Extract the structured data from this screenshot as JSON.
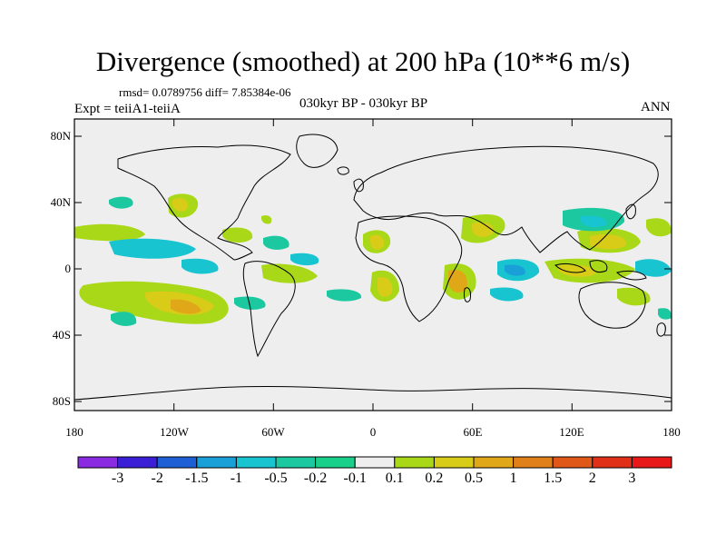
{
  "title": "Divergence (smoothed) at 200 hPa (10**6 m/s)",
  "stats_line": "rmsd= 0.0789756 diff= 7.85384e-06",
  "experiment_label": "Expt = teiiA1-teiiA",
  "period_label": "030kyr BP - 030kyr BP",
  "season_label": "ANN",
  "lat_ticks": [
    "80N",
    "40N",
    "0",
    "40S",
    "80S"
  ],
  "lon_ticks": [
    "180",
    "120W",
    "60W",
    "0",
    "60E",
    "120E",
    "180"
  ],
  "colorbar": {
    "labels": [
      "-3",
      "-2",
      "-1.5",
      "-1",
      "-0.5",
      "-0.2",
      "-0.1",
      "0.1",
      "0.2",
      "0.5",
      "1",
      "1.5",
      "2",
      "3"
    ],
    "colors": [
      "#8a2be2",
      "#3a1fd6",
      "#1f5fd6",
      "#1aa0d8",
      "#18c4cf",
      "#1cc8a0",
      "#18d08a",
      "#eeeeee",
      "#a8d818",
      "#d8cc18",
      "#e0a818",
      "#e08018",
      "#e05818",
      "#e03018",
      "#e81818"
    ]
  },
  "colors": {
    "background": "#eeeeee",
    "coast": "#000000"
  }
}
